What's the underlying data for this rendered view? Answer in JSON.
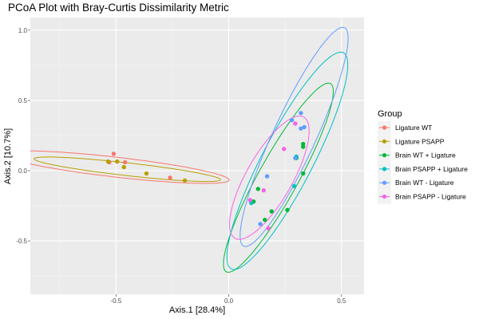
{
  "chart_data": {
    "type": "scatter",
    "title": "PCoA Plot with Bray-Curtis Dissimilarity Metric",
    "xlabel": "Axis.1   [28.4%]",
    "ylabel": "Axis.2   [10.7%]",
    "xlim": [
      -0.88,
      0.6
    ],
    "ylim": [
      -0.88,
      1.09
    ],
    "xticks": [
      -0.5,
      0.0,
      0.5
    ],
    "xtick_labels": [
      "-0.5",
      "0.0",
      "0.5"
    ],
    "yticks": [
      -0.5,
      0.0,
      0.5,
      1.0
    ],
    "ytick_labels": [
      "-0.5",
      "0.0",
      "0.5",
      "1.0"
    ],
    "grid": true,
    "legend_title": "Group",
    "legend_position": "right",
    "series": [
      {
        "name": "Ligature WT",
        "color": "#F8766D",
        "points": [
          [
            -0.51,
            0.12
          ],
          [
            -0.46,
            0.06
          ],
          [
            -0.53,
            0.06
          ],
          [
            -0.26,
            -0.05
          ]
        ],
        "ellipse": {
          "center": [
            -0.5,
            0.025
          ],
          "semi_major": 0.51,
          "semi_minor": 0.07,
          "angle_deg": -10.5
        }
      },
      {
        "name": "Ligature PSAPP",
        "color": "#B79F00",
        "points": [
          [
            -0.535,
            0.065
          ],
          [
            -0.495,
            0.065
          ],
          [
            -0.465,
            0.025
          ],
          [
            -0.365,
            -0.02
          ],
          [
            -0.195,
            -0.07
          ]
        ],
        "ellipse": {
          "center": [
            -0.45,
            0.01
          ],
          "semi_major": 0.42,
          "semi_minor": 0.045,
          "angle_deg": -10.3
        }
      },
      {
        "name": "Brain WT + Ligature",
        "color": "#00BA38",
        "points": [
          [
            0.33,
            0.19
          ],
          [
            0.33,
            0.17
          ],
          [
            0.33,
            -0.02
          ],
          [
            0.3,
            0.09
          ],
          [
            0.13,
            -0.13
          ],
          [
            0.11,
            -0.22
          ],
          [
            0.19,
            -0.29
          ],
          [
            0.16,
            -0.35
          ],
          [
            0.26,
            -0.28
          ]
        ],
        "ellipse": {
          "center": [
            0.22,
            -0.05
          ],
          "semi_major": 0.71,
          "semi_minor": 0.095,
          "angle_deg": 71.4
        }
      },
      {
        "name": "Brain PSAPP + Ligature",
        "color": "#00BFC4",
        "points": [
          [
            0.3,
            0.1
          ],
          [
            0.29,
            -0.11
          ],
          [
            0.1,
            -0.23
          ]
        ],
        "ellipse": {
          "center": [
            0.26,
            0.07
          ],
          "semi_major": 0.81,
          "semi_minor": 0.12,
          "angle_deg": 72.6
        }
      },
      {
        "name": "Brain WT - Ligature",
        "color": "#619CFF",
        "points": [
          [
            0.32,
            0.41
          ],
          [
            0.335,
            0.31
          ],
          [
            0.32,
            0.3
          ],
          [
            0.28,
            0.36
          ],
          [
            0.295,
            0.09
          ],
          [
            0.17,
            -0.04
          ],
          [
            0.14,
            -0.38
          ]
        ],
        "ellipse": {
          "center": [
            0.29,
            0.24
          ],
          "semi_major": 0.81,
          "semi_minor": 0.1,
          "angle_deg": 74.3
        }
      },
      {
        "name": "Brain PSAPP - Ligature",
        "color": "#F564E3",
        "points": [
          [
            0.295,
            0.335
          ],
          [
            0.245,
            0.155
          ],
          [
            0.155,
            -0.14
          ],
          [
            0.095,
            -0.21
          ],
          [
            0.175,
            -0.41
          ]
        ],
        "ellipse": {
          "center": [
            0.18,
            -0.05
          ],
          "semi_major": 0.46,
          "semi_minor": 0.11,
          "angle_deg": 72.0
        }
      }
    ]
  }
}
